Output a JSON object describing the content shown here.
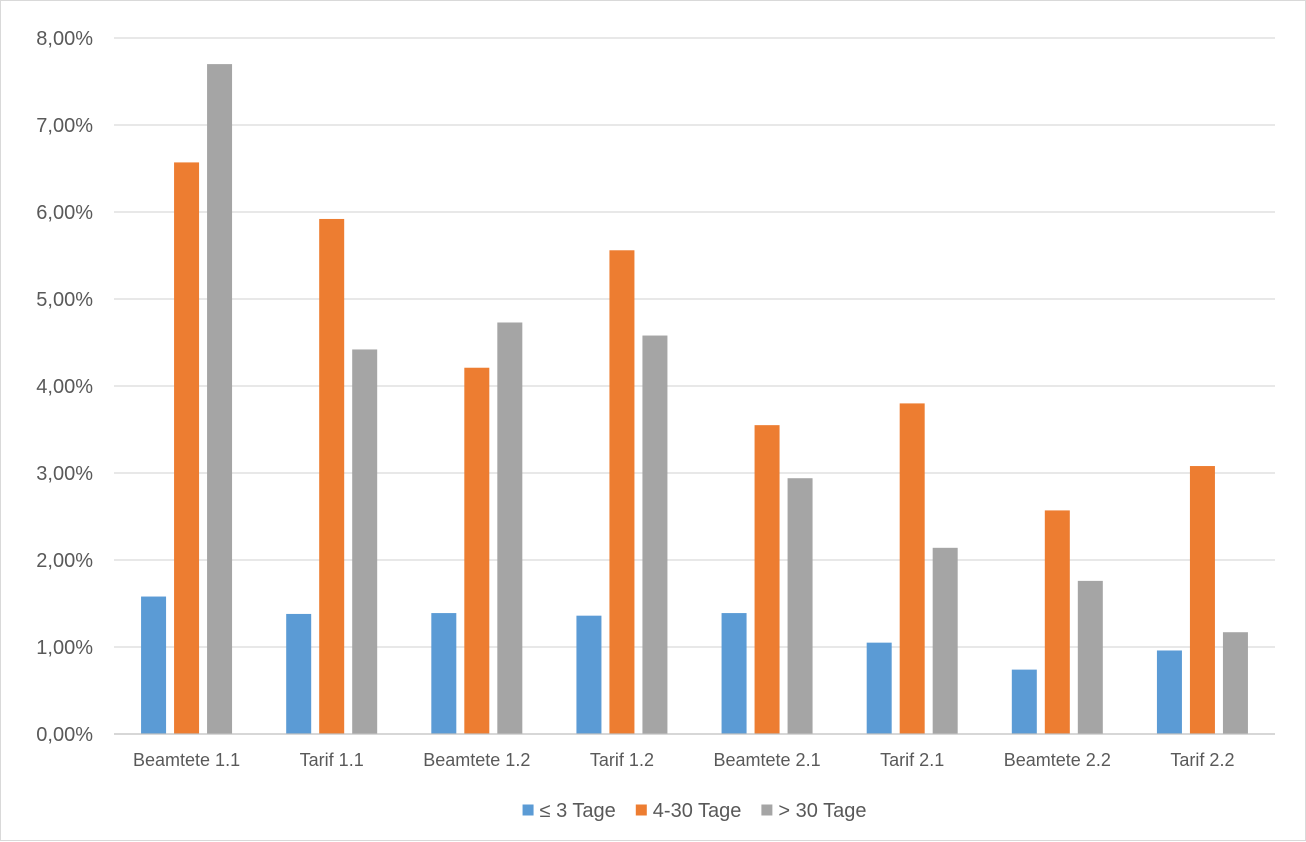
{
  "chart_data": {
    "type": "bar",
    "title": "",
    "xlabel": "",
    "ylabel": "",
    "categories": [
      "Beamtete 1.1",
      "Tarif 1.1",
      "Beamtete 1.2",
      "Tarif 1.2",
      "Beamtete 2.1",
      "Tarif 2.1",
      "Beamtete 2.2",
      "Tarif 2.2"
    ],
    "series": [
      {
        "name": "≤ 3 Tage",
        "color": "#5b9bd5",
        "values": [
          0.0158,
          0.0138,
          0.0139,
          0.0136,
          0.0139,
          0.0105,
          0.0074,
          0.0096
        ]
      },
      {
        "name": "4-30 Tage",
        "color": "#ed7d31",
        "values": [
          0.0657,
          0.0592,
          0.0421,
          0.0556,
          0.0355,
          0.038,
          0.0257,
          0.0308
        ]
      },
      {
        "name": "> 30 Tage",
        "color": "#a5a5a5",
        "values": [
          0.077,
          0.0442,
          0.0473,
          0.0458,
          0.0294,
          0.0214,
          0.0176,
          0.0117
        ]
      }
    ],
    "ylim": [
      0,
      0.08
    ],
    "yticks": [
      {
        "value": 0.0,
        "label": "0,00%"
      },
      {
        "value": 0.01,
        "label": "1,00%"
      },
      {
        "value": 0.02,
        "label": "2,00%"
      },
      {
        "value": 0.03,
        "label": "3,00%"
      },
      {
        "value": 0.04,
        "label": "4,00%"
      },
      {
        "value": 0.05,
        "label": "5,00%"
      },
      {
        "value": 0.06,
        "label": "6,00%"
      },
      {
        "value": 0.07,
        "label": "7,00%"
      },
      {
        "value": 0.08,
        "label": "8,00%"
      }
    ],
    "grid": true,
    "legend_position": "bottom-center",
    "colors": {
      "grid": "#d9d9d9",
      "axis": "#bfbfbf",
      "text": "#595959"
    }
  }
}
